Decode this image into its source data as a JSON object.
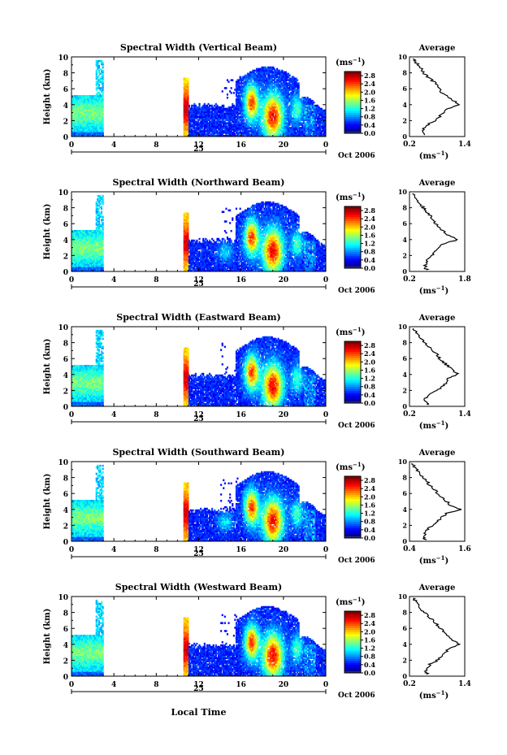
{
  "figure": {
    "xaxis_label": "Local Time",
    "colorbar_unit_text": "(ms",
    "colorbar_unit_exp": "−1",
    "avg_unit_text": "(ms",
    "avg_unit_exp": "−1"
  },
  "chart_data": [
    {
      "type": "heatmap",
      "title": "Spectral Width (Vertical Beam)",
      "ylabel": "Height (km)",
      "xlim": [
        0,
        24
      ],
      "ylim": [
        0,
        10
      ],
      "xticks": [
        "0",
        "4",
        "8",
        "12",
        "16",
        "20",
        "0"
      ],
      "yticks": [
        "0",
        "2",
        "4",
        "6",
        "8",
        "10"
      ],
      "day_label": "25",
      "date_label": "Oct 2006",
      "colorbar": {
        "ticks": [
          "0.0",
          "0.4",
          "0.8",
          "1.2",
          "1.6",
          "2.0",
          "2.4",
          "2.8"
        ],
        "range": [
          0,
          3.0
        ]
      },
      "avg_profile": {
        "title": "Average",
        "xlim": [
          0.2,
          1.4
        ],
        "xticks": [
          "0.2",
          "1.4"
        ],
        "ylim": [
          0,
          10
        ],
        "yticks": [
          "0",
          "2",
          "4",
          "6",
          "8",
          "10"
        ],
        "heights": [
          0.2,
          0.5,
          1.0,
          1.5,
          2.0,
          2.5,
          3.0,
          3.5,
          4.0,
          4.5,
          5.0,
          5.5,
          6.0,
          6.5,
          7.0,
          7.5,
          8.0,
          8.5,
          9.0,
          9.5,
          9.8
        ],
        "values": [
          0.55,
          0.5,
          0.52,
          0.6,
          0.75,
          0.85,
          0.95,
          1.05,
          1.3,
          1.15,
          1.05,
          0.9,
          0.85,
          0.8,
          0.7,
          0.6,
          0.5,
          0.45,
          0.38,
          0.32,
          0.28
        ]
      }
    },
    {
      "type": "heatmap",
      "title": "Spectral Width (Northward Beam)",
      "ylabel": "Height (km)",
      "xlim": [
        0,
        24
      ],
      "ylim": [
        0,
        10
      ],
      "xticks": [
        "0",
        "4",
        "8",
        "12",
        "16",
        "20",
        "0"
      ],
      "yticks": [
        "0",
        "2",
        "4",
        "6",
        "8",
        "10"
      ],
      "day_label": "25",
      "date_label": "Oct 2006",
      "colorbar": {
        "ticks": [
          "0.0",
          "0.4",
          "0.8",
          "1.2",
          "1.6",
          "2.0",
          "2.4",
          "2.8"
        ],
        "range": [
          0,
          3.0
        ]
      },
      "avg_profile": {
        "title": "Average",
        "xlim": [
          0.2,
          1.8
        ],
        "xticks": [
          "0.2",
          "1.8"
        ],
        "ylim": [
          0,
          10
        ],
        "yticks": [
          "0",
          "2",
          "4",
          "6",
          "8",
          "10"
        ],
        "heights": [
          0.2,
          0.5,
          1.0,
          1.5,
          2.0,
          2.5,
          3.0,
          3.5,
          4.0,
          4.5,
          5.0,
          5.5,
          6.0,
          6.5,
          7.0,
          7.5,
          8.0,
          8.5,
          9.0,
          9.5,
          9.8
        ],
        "values": [
          0.7,
          0.65,
          0.68,
          0.75,
          0.85,
          0.95,
          1.05,
          1.2,
          1.6,
          1.35,
          1.2,
          1.05,
          0.95,
          0.9,
          0.8,
          0.7,
          0.6,
          0.5,
          0.42,
          0.35,
          0.3
        ]
      }
    },
    {
      "type": "heatmap",
      "title": "Spectral Width (Eastward Beam)",
      "ylabel": "Height (km)",
      "xlim": [
        0,
        24
      ],
      "ylim": [
        0,
        10
      ],
      "xticks": [
        "0",
        "4",
        "8",
        "12",
        "16",
        "20",
        "0"
      ],
      "yticks": [
        "0",
        "2",
        "4",
        "6",
        "8",
        "10"
      ],
      "day_label": "25",
      "date_label": "Oct 2006",
      "colorbar": {
        "ticks": [
          "0.0",
          "0.4",
          "0.8",
          "1.2",
          "1.6",
          "2.0",
          "2.4",
          "2.8"
        ],
        "range": [
          0,
          3.0
        ]
      },
      "avg_profile": {
        "title": "Average",
        "xlim": [
          0.2,
          1.4
        ],
        "xticks": [
          "0.2",
          "1.4"
        ],
        "ylim": [
          0,
          10
        ],
        "yticks": [
          "0",
          "2",
          "4",
          "6",
          "8",
          "10"
        ],
        "heights": [
          0.2,
          0.5,
          1.0,
          1.5,
          2.0,
          2.5,
          3.0,
          3.5,
          4.0,
          4.5,
          5.0,
          5.5,
          6.0,
          6.5,
          7.0,
          7.5,
          8.0,
          8.5,
          9.0,
          9.5,
          9.8
        ],
        "values": [
          0.6,
          0.55,
          0.55,
          0.65,
          0.8,
          0.9,
          1.0,
          1.05,
          1.25,
          1.15,
          1.05,
          0.95,
          0.85,
          0.8,
          0.72,
          0.62,
          0.52,
          0.45,
          0.38,
          0.32,
          0.28
        ]
      }
    },
    {
      "type": "heatmap",
      "title": "Spectral Width (Southward Beam)",
      "ylabel": "Height (km)",
      "xlim": [
        0,
        24
      ],
      "ylim": [
        0,
        10
      ],
      "xticks": [
        "0",
        "4",
        "8",
        "12",
        "16",
        "20",
        "0"
      ],
      "yticks": [
        "0",
        "2",
        "4",
        "6",
        "8",
        "10"
      ],
      "day_label": "25",
      "date_label": "Oct 2006",
      "colorbar": {
        "ticks": [
          "0.0",
          "0.4",
          "0.8",
          "1.2",
          "1.6",
          "2.0",
          "2.4",
          "2.8"
        ],
        "range": [
          0,
          3.0
        ]
      },
      "avg_profile": {
        "title": "Average",
        "xlim": [
          0.4,
          1.6
        ],
        "xticks": [
          "0.4",
          "1.6"
        ],
        "ylim": [
          0,
          10
        ],
        "yticks": [
          "0",
          "2",
          "4",
          "6",
          "8",
          "10"
        ],
        "heights": [
          0.2,
          0.5,
          1.0,
          1.5,
          2.0,
          2.5,
          3.0,
          3.5,
          4.0,
          4.5,
          5.0,
          5.5,
          6.0,
          6.5,
          7.0,
          7.5,
          8.0,
          8.5,
          9.0,
          9.5,
          9.8
        ],
        "values": [
          0.75,
          0.72,
          0.75,
          0.8,
          0.9,
          1.0,
          1.1,
          1.2,
          1.5,
          1.3,
          1.2,
          1.1,
          1.0,
          0.95,
          0.85,
          0.78,
          0.7,
          0.62,
          0.55,
          0.5,
          0.46
        ]
      }
    },
    {
      "type": "heatmap",
      "title": "Spectral Width (Westward Beam)",
      "ylabel": "Height (km)",
      "xlim": [
        0,
        24
      ],
      "ylim": [
        0,
        10
      ],
      "xticks": [
        "0",
        "4",
        "8",
        "12",
        "16",
        "20",
        "0"
      ],
      "yticks": [
        "0",
        "2",
        "4",
        "6",
        "8",
        "10"
      ],
      "day_label": "25",
      "date_label": "Oct 2006",
      "colorbar": {
        "ticks": [
          "0.0",
          "0.4",
          "0.8",
          "1.2",
          "1.6",
          "2.0",
          "2.4",
          "2.8"
        ],
        "range": [
          0,
          3.0
        ]
      },
      "avg_profile": {
        "title": "Average",
        "xlim": [
          0.2,
          1.4
        ],
        "xticks": [
          "0.2",
          "1.4"
        ],
        "ylim": [
          0,
          10
        ],
        "yticks": [
          "0",
          "2",
          "4",
          "6",
          "8",
          "10"
        ],
        "heights": [
          0.2,
          0.5,
          1.0,
          1.5,
          2.0,
          2.5,
          3.0,
          3.5,
          4.0,
          4.5,
          5.0,
          5.5,
          6.0,
          6.5,
          7.0,
          7.5,
          8.0,
          8.5,
          9.0,
          9.5,
          9.8
        ],
        "values": [
          0.6,
          0.55,
          0.58,
          0.65,
          0.8,
          0.9,
          1.0,
          1.05,
          1.3,
          1.15,
          1.05,
          0.95,
          0.88,
          0.8,
          0.72,
          0.62,
          0.52,
          0.45,
          0.38,
          0.33,
          0.28
        ]
      }
    }
  ]
}
